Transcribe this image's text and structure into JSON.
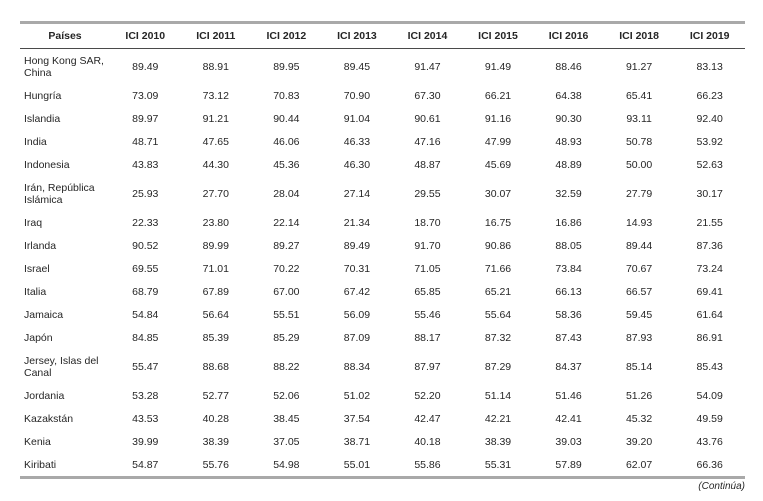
{
  "table": {
    "columns": [
      "Países",
      "ICI 2010",
      "ICI 2011",
      "ICI 2012",
      "ICI 2013",
      "ICI 2014",
      "ICI 2015",
      "ICI 2016",
      "ICI 2018",
      "ICI 2019"
    ],
    "rows": [
      {
        "country": "Hong Kong SAR, China",
        "values": [
          "89.49",
          "88.91",
          "89.95",
          "89.45",
          "91.47",
          "91.49",
          "88.46",
          "91.27",
          "83.13"
        ]
      },
      {
        "country": "Hungría",
        "values": [
          "73.09",
          "73.12",
          "70.83",
          "70.90",
          "67.30",
          "66.21",
          "64.38",
          "65.41",
          "66.23"
        ]
      },
      {
        "country": "Islandia",
        "values": [
          "89.97",
          "91.21",
          "90.44",
          "91.04",
          "90.61",
          "91.16",
          "90.30",
          "93.11",
          "92.40"
        ]
      },
      {
        "country": "India",
        "values": [
          "48.71",
          "47.65",
          "46.06",
          "46.33",
          "47.16",
          "47.99",
          "48.93",
          "50.78",
          "53.92"
        ]
      },
      {
        "country": "Indonesia",
        "values": [
          "43.83",
          "44.30",
          "45.36",
          "46.30",
          "48.87",
          "45.69",
          "48.89",
          "50.00",
          "52.63"
        ]
      },
      {
        "country": "Irán, República Islámica",
        "values": [
          "25.93",
          "27.70",
          "28.04",
          "27.14",
          "29.55",
          "30.07",
          "32.59",
          "27.79",
          "30.17"
        ]
      },
      {
        "country": "Iraq",
        "values": [
          "22.33",
          "23.80",
          "22.14",
          "21.34",
          "18.70",
          "16.75",
          "16.86",
          "14.93",
          "21.55"
        ]
      },
      {
        "country": "Irlanda",
        "values": [
          "90.52",
          "89.99",
          "89.27",
          "89.49",
          "91.70",
          "90.86",
          "88.05",
          "89.44",
          "87.36"
        ]
      },
      {
        "country": "Israel",
        "values": [
          "69.55",
          "71.01",
          "70.22",
          "70.31",
          "71.05",
          "71.66",
          "73.84",
          "70.67",
          "73.24"
        ]
      },
      {
        "country": "Italia",
        "values": [
          "68.79",
          "67.89",
          "67.00",
          "67.42",
          "65.85",
          "65.21",
          "66.13",
          "66.57",
          "69.41"
        ]
      },
      {
        "country": "Jamaica",
        "values": [
          "54.84",
          "56.64",
          "55.51",
          "56.09",
          "55.46",
          "55.64",
          "58.36",
          "59.45",
          "61.64"
        ]
      },
      {
        "country": "Japón",
        "values": [
          "84.85",
          "85.39",
          "85.29",
          "87.09",
          "88.17",
          "87.32",
          "87.43",
          "87.93",
          "86.91"
        ]
      },
      {
        "country": "Jersey, Islas del Canal",
        "values": [
          "55.47",
          "88.68",
          "88.22",
          "88.34",
          "87.97",
          "87.29",
          "84.37",
          "85.14",
          "85.43"
        ]
      },
      {
        "country": "Jordania",
        "values": [
          "53.28",
          "52.77",
          "52.06",
          "51.02",
          "52.20",
          "51.14",
          "51.46",
          "51.26",
          "54.09"
        ]
      },
      {
        "country": "Kazakstán",
        "values": [
          "43.53",
          "40.28",
          "38.45",
          "37.54",
          "42.47",
          "42.21",
          "42.41",
          "45.32",
          "49.59"
        ]
      },
      {
        "country": "Kenia",
        "values": [
          "39.99",
          "38.39",
          "37.05",
          "38.71",
          "40.18",
          "38.39",
          "39.03",
          "39.20",
          "43.76"
        ]
      },
      {
        "country": "Kiribati",
        "values": [
          "54.87",
          "55.76",
          "54.98",
          "55.01",
          "55.86",
          "55.31",
          "57.89",
          "62.07",
          "66.36"
        ]
      }
    ],
    "footer_note": "(Continúa)"
  }
}
